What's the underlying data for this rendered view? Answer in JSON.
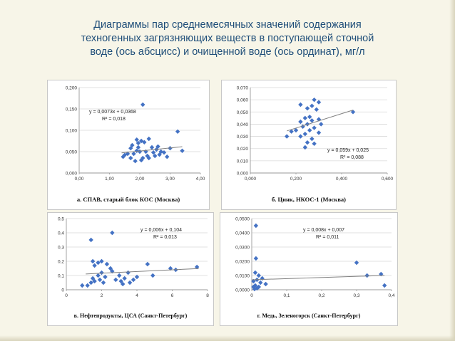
{
  "title_lines": [
    "Диаграммы пар среднемесячных значений содержания",
    "техногенных загрязняющих веществ в поступающей сточной",
    "воде (ось абсцисс) и очищенной воде (ось ординат), мг/л"
  ],
  "colors": {
    "point": "#4472c4",
    "trend": "#808080",
    "grid": "#d9d9d9",
    "title": "#1f4e79"
  },
  "chart_data": [
    {
      "type": "scatter",
      "caption": "а. СПАВ, старый блок КОС (Москва)",
      "xlim": [
        0,
        4
      ],
      "ylim": [
        0,
        0.2
      ],
      "xticks": [
        "0,00",
        "1,00",
        "2,00",
        "3,00",
        "4,00"
      ],
      "yticks": [
        "0,000",
        "0,050",
        "0,100",
        "0,150",
        "0,200"
      ],
      "equation": "y = 0,0073x + 0,0368",
      "r2": "R² = 0,018",
      "trend": {
        "slope": 0.0073,
        "intercept": 0.0368,
        "x_range": [
          1.4,
          3.4
        ]
      },
      "points": [
        [
          2.1,
          0.16
        ],
        [
          3.25,
          0.097
        ],
        [
          1.9,
          0.078
        ],
        [
          2.05,
          0.075
        ],
        [
          1.95,
          0.07
        ],
        [
          2.3,
          0.08
        ],
        [
          2.15,
          0.072
        ],
        [
          1.75,
          0.065
        ],
        [
          1.7,
          0.058
        ],
        [
          2.4,
          0.06
        ],
        [
          2.55,
          0.055
        ],
        [
          2.6,
          0.062
        ],
        [
          2.7,
          0.05
        ],
        [
          2.8,
          0.048
        ],
        [
          2.2,
          0.05
        ],
        [
          2.0,
          0.05
        ],
        [
          1.9,
          0.052
        ],
        [
          1.8,
          0.045
        ],
        [
          1.6,
          0.045
        ],
        [
          1.5,
          0.042
        ],
        [
          1.45,
          0.038
        ],
        [
          2.5,
          0.04
        ],
        [
          3.0,
          0.058
        ],
        [
          3.4,
          0.052
        ],
        [
          2.1,
          0.035
        ],
        [
          2.3,
          0.035
        ],
        [
          1.7,
          0.035
        ],
        [
          2.9,
          0.038
        ],
        [
          1.85,
          0.028
        ],
        [
          2.05,
          0.03
        ],
        [
          2.25,
          0.04
        ],
        [
          2.65,
          0.043
        ],
        [
          2.45,
          0.048
        ],
        [
          1.95,
          0.06
        ]
      ]
    },
    {
      "type": "scatter",
      "caption": "б. Цинк, НКОС-1 (Москва)",
      "xlim": [
        0,
        0.6
      ],
      "ylim": [
        0,
        0.07
      ],
      "xticks": [
        "0,000",
        "0,200",
        "0,400",
        "0,600"
      ],
      "yticks": [
        "0,000",
        "0,010",
        "0,020",
        "0,030",
        "0,040",
        "0,050",
        "0,060",
        "0,070"
      ],
      "equation": "y = 0,059x + 0,025",
      "r2": "R² = 0,088",
      "trend": {
        "slope": 0.059,
        "intercept": 0.025,
        "x_range": [
          0.16,
          0.45
        ]
      },
      "points": [
        [
          0.28,
          0.06
        ],
        [
          0.3,
          0.058
        ],
        [
          0.22,
          0.056
        ],
        [
          0.27,
          0.055
        ],
        [
          0.25,
          0.053
        ],
        [
          0.29,
          0.052
        ],
        [
          0.45,
          0.05
        ],
        [
          0.26,
          0.046
        ],
        [
          0.24,
          0.045
        ],
        [
          0.3,
          0.044
        ],
        [
          0.27,
          0.043
        ],
        [
          0.22,
          0.042
        ],
        [
          0.25,
          0.04
        ],
        [
          0.31,
          0.04
        ],
        [
          0.23,
          0.038
        ],
        [
          0.28,
          0.037
        ],
        [
          0.2,
          0.035
        ],
        [
          0.26,
          0.035
        ],
        [
          0.18,
          0.034
        ],
        [
          0.3,
          0.033
        ],
        [
          0.24,
          0.032
        ],
        [
          0.16,
          0.03
        ],
        [
          0.22,
          0.03
        ],
        [
          0.27,
          0.028
        ],
        [
          0.25,
          0.025
        ],
        [
          0.28,
          0.024
        ],
        [
          0.24,
          0.021
        ]
      ]
    },
    {
      "type": "scatter",
      "caption": "в. Нефтепродукты, ЦСА (Санкт-Петербург)",
      "xlim": [
        0,
        8
      ],
      "ylim": [
        0,
        0.5
      ],
      "xticks": [
        "0",
        "2",
        "4",
        "6",
        "8"
      ],
      "yticks": [
        "0",
        "0,1",
        "0,2",
        "0,3",
        "0,4",
        "0,5"
      ],
      "equation": "y = 0,006x + 0,104",
      "r2": "R² = 0,013",
      "trend": {
        "slope": 0.006,
        "intercept": 0.104,
        "x_range": [
          1.1,
          7.5
        ]
      },
      "points": [
        [
          2.6,
          0.4
        ],
        [
          1.4,
          0.35
        ],
        [
          1.5,
          0.2
        ],
        [
          1.8,
          0.19
        ],
        [
          2.0,
          0.2
        ],
        [
          2.3,
          0.18
        ],
        [
          1.6,
          0.17
        ],
        [
          4.6,
          0.18
        ],
        [
          5.9,
          0.15
        ],
        [
          7.4,
          0.16
        ],
        [
          6.2,
          0.14
        ],
        [
          2.5,
          0.15
        ],
        [
          2.6,
          0.13
        ],
        [
          2.0,
          0.12
        ],
        [
          3.0,
          0.1
        ],
        [
          3.5,
          0.12
        ],
        [
          4.0,
          0.09
        ],
        [
          3.3,
          0.08
        ],
        [
          1.8,
          0.1
        ],
        [
          2.2,
          0.09
        ],
        [
          1.5,
          0.08
        ],
        [
          1.6,
          0.06
        ],
        [
          1.9,
          0.07
        ],
        [
          2.1,
          0.05
        ],
        [
          3.1,
          0.06
        ],
        [
          3.6,
          0.05
        ],
        [
          3.2,
          0.04
        ],
        [
          4.9,
          0.1
        ],
        [
          0.9,
          0.03
        ],
        [
          1.2,
          0.03
        ],
        [
          1.4,
          0.05
        ],
        [
          2.8,
          0.07
        ],
        [
          3.8,
          0.07
        ]
      ]
    },
    {
      "type": "scatter",
      "caption": "г. Медь, Зеленогорск (Санкт-Петербург)",
      "xlim": [
        0,
        0.4
      ],
      "ylim": [
        0,
        0.05
      ],
      "xticks": [
        "0",
        "0,1",
        "0,2",
        "0,3",
        "0,4"
      ],
      "yticks": [
        "0,0000",
        "0,0100",
        "0,0200",
        "0,0300",
        "0,0400",
        "0,0500"
      ],
      "equation": "y = 0,008x + 0,007",
      "r2": "R² = 0,011",
      "trend": {
        "slope": 0.008,
        "intercept": 0.007,
        "x_range": [
          0,
          0.38
        ]
      },
      "points": [
        [
          0.012,
          0.045
        ],
        [
          0.012,
          0.022
        ],
        [
          0.01,
          0.012
        ],
        [
          0.02,
          0.01
        ],
        [
          0.03,
          0.008
        ],
        [
          0.015,
          0.007
        ],
        [
          0.005,
          0.006
        ],
        [
          0.025,
          0.005
        ],
        [
          0.04,
          0.004
        ],
        [
          0.01,
          0.003
        ],
        [
          0.005,
          0.002
        ],
        [
          0.02,
          0.002
        ],
        [
          0.015,
          0.001
        ],
        [
          0.008,
          0.0005
        ],
        [
          0.3,
          0.019
        ],
        [
          0.37,
          0.011
        ],
        [
          0.33,
          0.01
        ],
        [
          0.38,
          0.003
        ]
      ]
    }
  ]
}
